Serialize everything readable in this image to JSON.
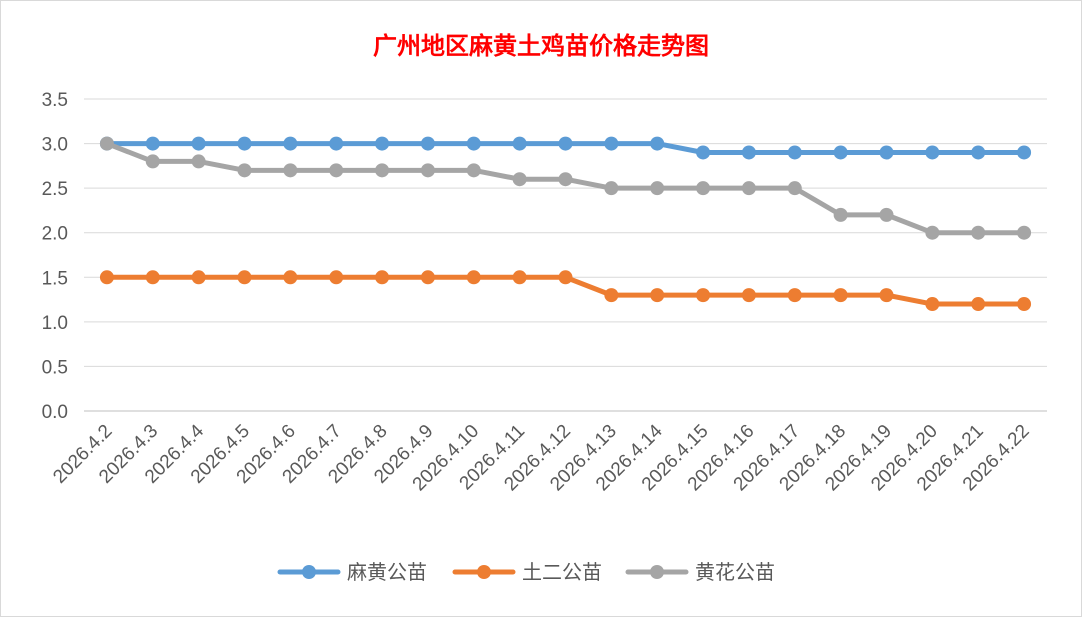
{
  "chart_data": {
    "type": "line",
    "title": "广州地区麻黄土鸡苗价格走势图",
    "xlabel": "",
    "ylabel": "",
    "categories": [
      "2026.4.2",
      "2026.4.3",
      "2026.4.4",
      "2026.4.5",
      "2026.4.6",
      "2026.4.7",
      "2026.4.8",
      "2026.4.9",
      "2026.4.10",
      "2026.4.11",
      "2026.4.12",
      "2026.4.13",
      "2026.4.14",
      "2026.4.15",
      "2026.4.16",
      "2026.4.17",
      "2026.4.18",
      "2026.4.19",
      "2026.4.20",
      "2026.4.21",
      "2026.4.22"
    ],
    "series": [
      {
        "name": "麻黄公苗",
        "color": "#5b9bd5",
        "values": [
          3.0,
          3.0,
          3.0,
          3.0,
          3.0,
          3.0,
          3.0,
          3.0,
          3.0,
          3.0,
          3.0,
          3.0,
          3.0,
          2.9,
          2.9,
          2.9,
          2.9,
          2.9,
          2.9,
          2.9,
          2.9
        ]
      },
      {
        "name": "土二公苗",
        "color": "#ed7d31",
        "values": [
          1.5,
          1.5,
          1.5,
          1.5,
          1.5,
          1.5,
          1.5,
          1.5,
          1.5,
          1.5,
          1.5,
          1.3,
          1.3,
          1.3,
          1.3,
          1.3,
          1.3,
          1.3,
          1.2,
          1.2,
          1.2
        ]
      },
      {
        "name": "黄花公苗",
        "color": "#a5a5a5",
        "values": [
          3.0,
          2.8,
          2.8,
          2.7,
          2.7,
          2.7,
          2.7,
          2.7,
          2.7,
          2.6,
          2.6,
          2.5,
          2.5,
          2.5,
          2.5,
          2.5,
          2.2,
          2.2,
          2.0,
          2.0,
          2.0
        ]
      }
    ],
    "yticks": [
      "0.0",
      "0.5",
      "1.0",
      "1.5",
      "2.0",
      "2.5",
      "3.0",
      "3.5"
    ],
    "ylim": [
      0,
      3.5
    ],
    "grid": true,
    "legend_position": "bottom"
  }
}
